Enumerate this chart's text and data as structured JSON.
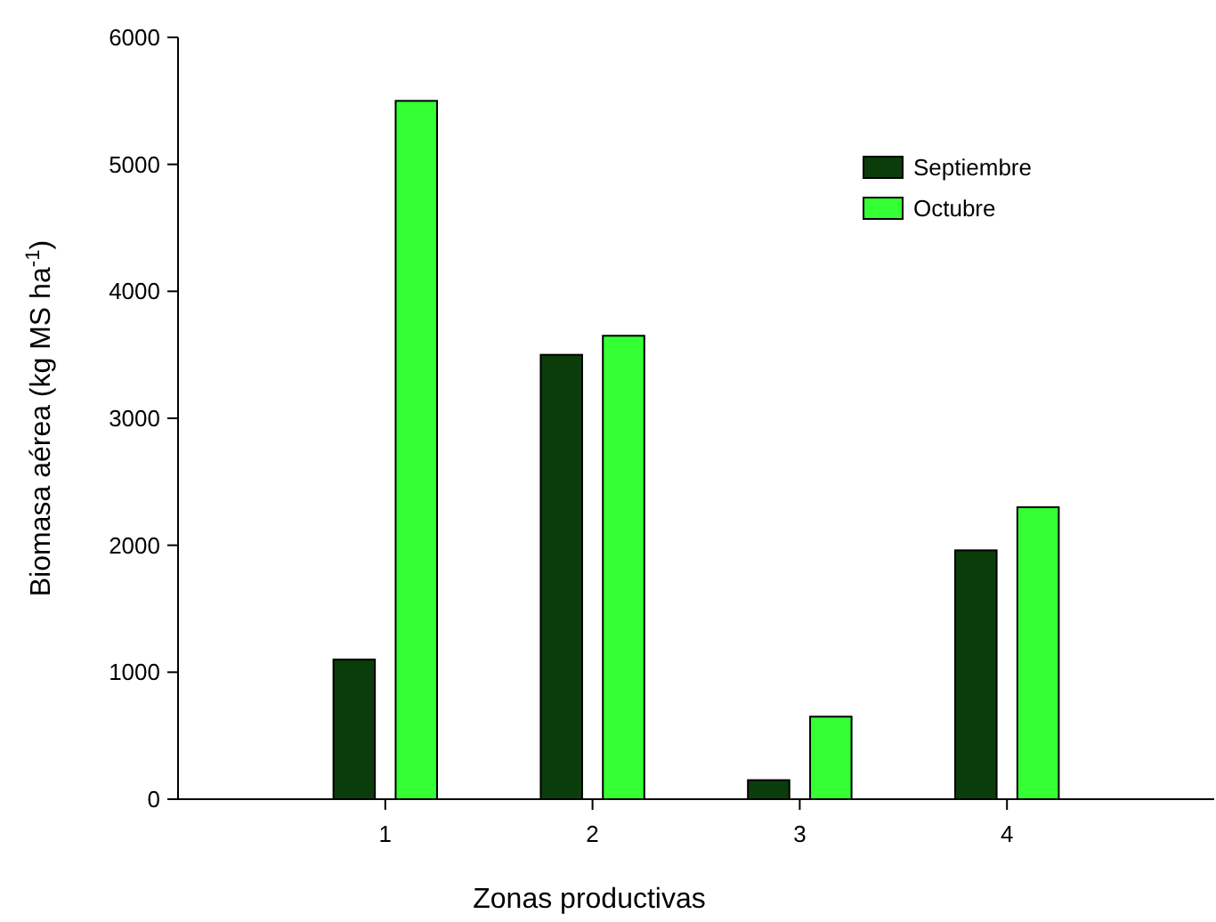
{
  "chart_data": {
    "type": "bar",
    "xlabel": "Zonas productivas",
    "ylabel": "Biomasa aérea (kg MS ha$^{-1}$)",
    "x": [
      1,
      2,
      3,
      4
    ],
    "xlim": [
      0,
      5
    ],
    "xticks": [
      1,
      2,
      3,
      4
    ],
    "ylim": [
      0,
      6000
    ],
    "yticks": [
      0,
      1000,
      2000,
      3000,
      4000,
      5000,
      6000
    ],
    "series": [
      {
        "name": "Septiembre",
        "color": "#0b3d0b",
        "values": [
          1100,
          3500,
          150,
          1960
        ]
      },
      {
        "name": "Octubre",
        "color": "#33ff33",
        "values": [
          5500,
          3650,
          650,
          2300
        ]
      }
    ],
    "legend": "top right",
    "grid": false
  }
}
